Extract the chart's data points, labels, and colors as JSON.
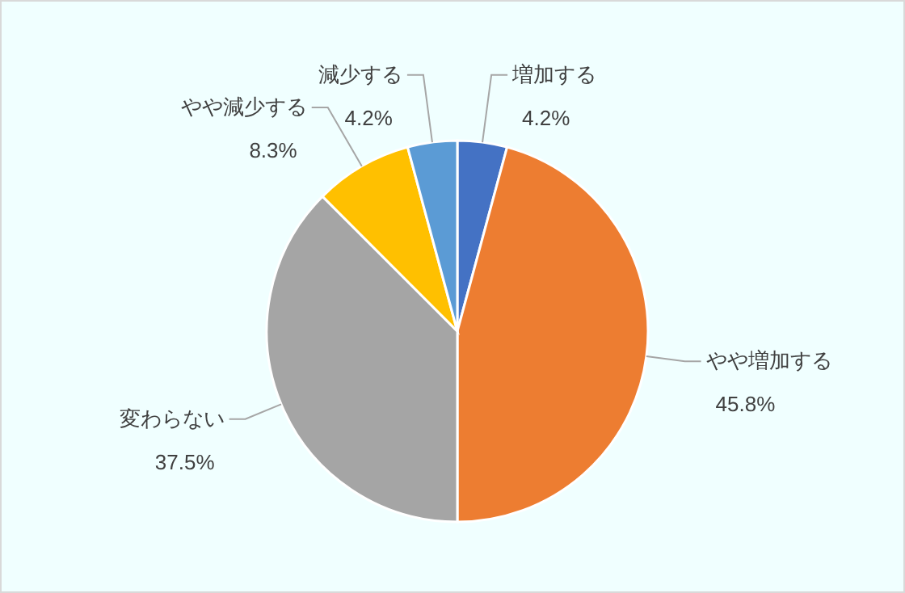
{
  "chart_data": {
    "type": "pie",
    "categories": [
      "増加する",
      "やや増加する",
      "変わらない",
      "やや減少する",
      "減少する"
    ],
    "values": [
      4.2,
      45.8,
      37.5,
      8.3,
      4.2
    ],
    "colors": [
      "#4472c4",
      "#ed7d31",
      "#a5a5a5",
      "#ffc000",
      "#5b9bd5"
    ],
    "value_labels": [
      "4.2%",
      "45.8%",
      "37.5%",
      "8.3%",
      "4.2%"
    ],
    "legend": false
  }
}
